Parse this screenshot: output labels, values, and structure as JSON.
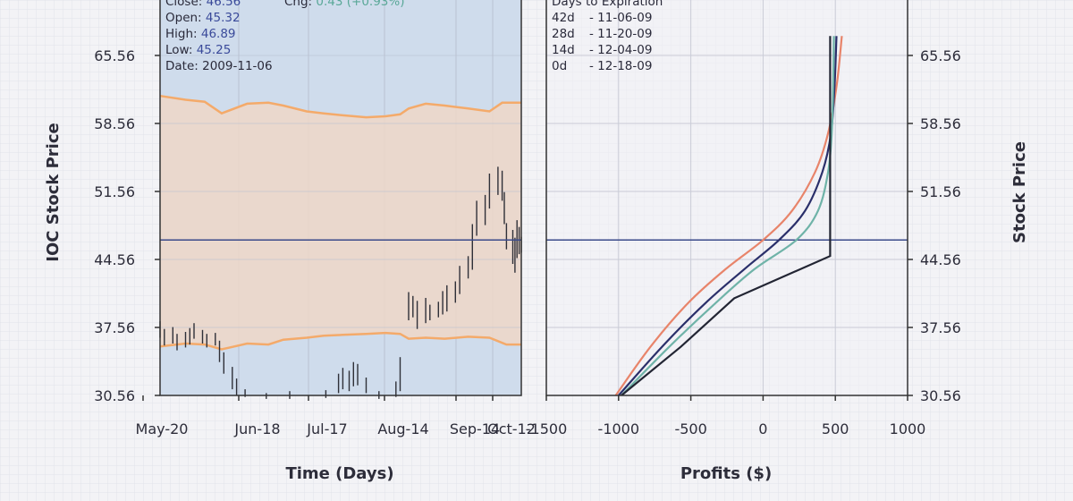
{
  "theme": {
    "left_panel_bg": "#cfdcec",
    "band_fill": "#eed7c8",
    "band_line": "#f4aa6a",
    "price_line": "#3a4a8a",
    "bar_color": "#2f3038"
  },
  "info_box": {
    "close_label": "Close:",
    "close_value": "46.56",
    "open_label": "Open:",
    "open_value": "45.32",
    "high_label": "High:",
    "high_value": "46.89",
    "low_label": "Low:",
    "low_value": "45.25",
    "date_label": "Date:",
    "date_value": "2009-11-06",
    "chg_label": "Chg:",
    "chg_value": "0.43 (+0.93%)"
  },
  "legend": {
    "title": "Days to Expiration",
    "entries": [
      {
        "days": "42d",
        "date": "- 11-06-09",
        "color": "#e8846a"
      },
      {
        "days": "28d",
        "date": "- 11-20-09",
        "color": "#2a2f6a"
      },
      {
        "days": "14d",
        "date": "- 12-04-09",
        "color": "#6fb3a8"
      },
      {
        "days": "0d",
        "date": "- 12-18-09",
        "color": "#222533"
      }
    ]
  },
  "chart_data": [
    {
      "type": "ohlc",
      "xlabel": "Time (Days)",
      "ylabel": "IOC Stock Price",
      "x_ticks": [
        "May-20",
        "Jun-18",
        "Jul-17",
        "Aug-14",
        "Sep-14",
        "Oct-12"
      ],
      "y_ticks": [
        "30.56",
        "37.56",
        "44.56",
        "51.56",
        "58.56",
        "65.56"
      ],
      "ylim": [
        30.56,
        65.56
      ],
      "xlim": [
        "2009-05-20",
        "2009-11-06"
      ],
      "current_price": 46.56,
      "band_upper": [
        [
          "2009-05-20",
          61.4
        ],
        [
          "2009-06-01",
          61.0
        ],
        [
          "2009-06-10",
          60.8
        ],
        [
          "2009-06-18",
          59.6
        ],
        [
          "2009-06-30",
          60.6
        ],
        [
          "2009-07-10",
          60.7
        ],
        [
          "2009-07-17",
          60.4
        ],
        [
          "2009-07-28",
          59.8
        ],
        [
          "2009-08-05",
          59.6
        ],
        [
          "2009-08-14",
          59.4
        ],
        [
          "2009-08-25",
          59.2
        ],
        [
          "2009-09-03",
          59.3
        ],
        [
          "2009-09-10",
          59.5
        ],
        [
          "2009-09-14",
          60.1
        ],
        [
          "2009-09-22",
          60.6
        ],
        [
          "2009-10-01",
          60.4
        ],
        [
          "2009-10-12",
          60.1
        ],
        [
          "2009-10-22",
          59.8
        ],
        [
          "2009-10-28",
          60.7
        ],
        [
          "2009-11-06",
          60.7
        ]
      ],
      "band_lower": [
        [
          "2009-05-20",
          35.6
        ],
        [
          "2009-06-01",
          35.9
        ],
        [
          "2009-06-10",
          35.8
        ],
        [
          "2009-06-18",
          35.3
        ],
        [
          "2009-06-30",
          35.9
        ],
        [
          "2009-07-10",
          35.8
        ],
        [
          "2009-07-17",
          36.3
        ],
        [
          "2009-07-28",
          36.5
        ],
        [
          "2009-08-05",
          36.7
        ],
        [
          "2009-08-14",
          36.8
        ],
        [
          "2009-08-25",
          36.9
        ],
        [
          "2009-09-03",
          37.0
        ],
        [
          "2009-09-10",
          36.9
        ],
        [
          "2009-09-14",
          36.4
        ],
        [
          "2009-09-22",
          36.5
        ],
        [
          "2009-10-01",
          36.4
        ],
        [
          "2009-10-12",
          36.6
        ],
        [
          "2009-10-22",
          36.5
        ],
        [
          "2009-10-30",
          35.8
        ],
        [
          "2009-11-06",
          35.8
        ]
      ],
      "bars": [
        [
          "2009-05-20",
          36.5,
          38.2
        ],
        [
          "2009-05-22",
          35.7,
          37.4
        ],
        [
          "2009-05-26",
          35.9,
          37.6
        ],
        [
          "2009-05-28",
          35.2,
          36.9
        ],
        [
          "2009-06-01",
          35.5,
          37.1
        ],
        [
          "2009-06-03",
          35.8,
          37.5
        ],
        [
          "2009-06-05",
          36.4,
          38.0
        ],
        [
          "2009-06-09",
          35.9,
          37.3
        ],
        [
          "2009-06-11",
          35.5,
          36.9
        ],
        [
          "2009-06-15",
          35.7,
          37.0
        ],
        [
          "2009-06-17",
          34.0,
          36.2
        ],
        [
          "2009-06-19",
          32.8,
          35.0
        ],
        [
          "2009-06-23",
          31.2,
          33.5
        ],
        [
          "2009-06-25",
          30.6,
          32.3
        ],
        [
          "2009-06-29",
          30.4,
          31.2
        ],
        [
          "2009-07-09",
          30.2,
          30.8
        ],
        [
          "2009-07-20",
          30.2,
          31.0
        ],
        [
          "2009-08-06",
          30.3,
          31.1
        ],
        [
          "2009-08-12",
          30.8,
          32.8
        ],
        [
          "2009-08-14",
          31.2,
          33.4
        ],
        [
          "2009-08-17",
          31.0,
          33.1
        ],
        [
          "2009-08-19",
          31.5,
          34.0
        ],
        [
          "2009-08-21",
          31.6,
          33.8
        ],
        [
          "2009-08-25",
          30.8,
          32.4
        ],
        [
          "2009-08-31",
          30.2,
          31.0
        ],
        [
          "2009-09-08",
          30.4,
          32.0
        ],
        [
          "2009-09-10",
          31.0,
          34.5
        ],
        [
          "2009-09-14",
          38.3,
          41.2
        ],
        [
          "2009-09-16",
          38.6,
          40.8
        ],
        [
          "2009-09-18",
          37.4,
          40.3
        ],
        [
          "2009-09-22",
          38.0,
          40.6
        ],
        [
          "2009-09-24",
          38.3,
          39.9
        ],
        [
          "2009-09-28",
          38.6,
          40.2
        ],
        [
          "2009-09-30",
          38.9,
          41.3
        ],
        [
          "2009-10-02",
          39.2,
          41.9
        ],
        [
          "2009-10-06",
          40.1,
          42.3
        ],
        [
          "2009-10-08",
          41.0,
          43.9
        ],
        [
          "2009-10-12",
          42.6,
          44.9
        ],
        [
          "2009-10-14",
          43.5,
          48.2
        ],
        [
          "2009-10-16",
          47.0,
          50.6
        ],
        [
          "2009-10-20",
          48.1,
          51.2
        ],
        [
          "2009-10-22",
          49.8,
          53.4
        ],
        [
          "2009-10-26",
          51.2,
          54.1
        ],
        [
          "2009-10-28",
          50.6,
          53.7
        ],
        [
          "2009-10-29",
          48.2,
          51.5
        ],
        [
          "2009-10-30",
          45.6,
          48.3
        ],
        [
          "2009-11-02",
          44.1,
          47.6
        ],
        [
          "2009-11-03",
          43.2,
          46.8
        ],
        [
          "2009-11-04",
          44.7,
          48.6
        ],
        [
          "2009-11-05",
          45.1,
          47.9
        ],
        [
          "2009-11-06",
          45.25,
          46.89
        ]
      ]
    },
    {
      "type": "line",
      "xlabel": "Profits ($)",
      "ylabel": "Stock Price",
      "x_ticks": [
        "-1500",
        "-1000",
        "-500",
        "0",
        "500",
        "1000"
      ],
      "y_ticks": [
        "30.56",
        "37.56",
        "44.56",
        "51.56",
        "58.56",
        "65.56"
      ],
      "xlim": [
        -1500,
        1000
      ],
      "ylim": [
        30.56,
        65.56
      ],
      "current_price": 46.56,
      "series": [
        {
          "name": "42d",
          "points": [
            [
              -1020,
              30.56
            ],
            [
              -780,
              35.56
            ],
            [
              -520,
              40.06
            ],
            [
              -260,
              43.56
            ],
            [
              0,
              46.56
            ],
            [
              200,
              49.56
            ],
            [
              360,
              53.56
            ],
            [
              450,
              57.56
            ],
            [
              510,
              62.56
            ],
            [
              545,
              67.56
            ]
          ]
        },
        {
          "name": "28d",
          "points": [
            [
              -1000,
              30.56
            ],
            [
              -700,
              35.56
            ],
            [
              -400,
              40.06
            ],
            [
              -130,
              43.56
            ],
            [
              110,
              46.56
            ],
            [
              290,
              49.56
            ],
            [
              410,
              53.56
            ],
            [
              470,
              57.56
            ],
            [
              495,
              62.56
            ],
            [
              508,
              67.56
            ]
          ]
        },
        {
          "name": "14d",
          "points": [
            [
              -980,
              30.56
            ],
            [
              -650,
              35.56
            ],
            [
              -330,
              40.06
            ],
            [
              -60,
              43.56
            ],
            [
              230,
              46.56
            ],
            [
              380,
              49.56
            ],
            [
              450,
              53.56
            ],
            [
              475,
              57.56
            ],
            [
              485,
              62.56
            ],
            [
              490,
              67.56
            ]
          ]
        },
        {
          "name": "0d",
          "points": [
            [
              -980,
              30.56
            ],
            [
              -570,
              35.56
            ],
            [
              -200,
              40.56
            ],
            [
              464,
              44.91
            ],
            [
              464,
              67.56
            ]
          ]
        }
      ]
    }
  ]
}
